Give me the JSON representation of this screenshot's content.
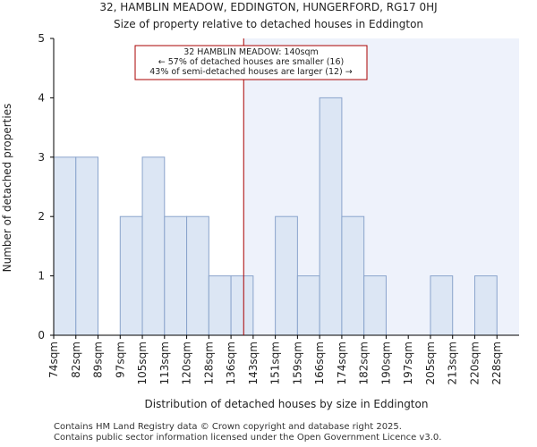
{
  "chart_data": {
    "type": "bar",
    "title": "32, HAMBLIN MEADOW, EDDINGTON, HUNGERFORD, RG17 0HJ",
    "subtitle": "Size of property relative to detached houses in Eddington",
    "xlabel": "Distribution of detached houses by size in Eddington",
    "ylabel": "Number of detached properties",
    "categories": [
      "74sqm",
      "82sqm",
      "89sqm",
      "97sqm",
      "105sqm",
      "113sqm",
      "120sqm",
      "128sqm",
      "136sqm",
      "143sqm",
      "151sqm",
      "159sqm",
      "166sqm",
      "174sqm",
      "182sqm",
      "190sqm",
      "197sqm",
      "205sqm",
      "213sqm",
      "220sqm",
      "228sqm"
    ],
    "values": [
      3,
      3,
      0,
      2,
      3,
      2,
      2,
      1,
      1,
      0,
      2,
      1,
      4,
      2,
      1,
      0,
      0,
      1,
      0,
      1,
      0
    ],
    "ylim": [
      0,
      5
    ],
    "yticks": [
      0,
      1,
      2,
      3,
      4,
      5
    ],
    "grid": false,
    "marker": {
      "value": 140,
      "label_lines": [
        "32 HAMBLIN MEADOW: 140sqm",
        "← 57% of detached houses are smaller (16)",
        "43% of semi-detached houses are larger (12) →"
      ]
    },
    "colors": {
      "bar_fill": "#dce6f4",
      "bar_stroke": "#8aa4cc",
      "highlight_bg": "#eef2fb",
      "marker_line": "#aa0000",
      "annotation_border": "#aa0000"
    }
  },
  "footer": {
    "line1": "Contains HM Land Registry data © Crown copyright and database right 2025.",
    "line2": "Contains public sector information licensed under the Open Government Licence v3.0."
  }
}
